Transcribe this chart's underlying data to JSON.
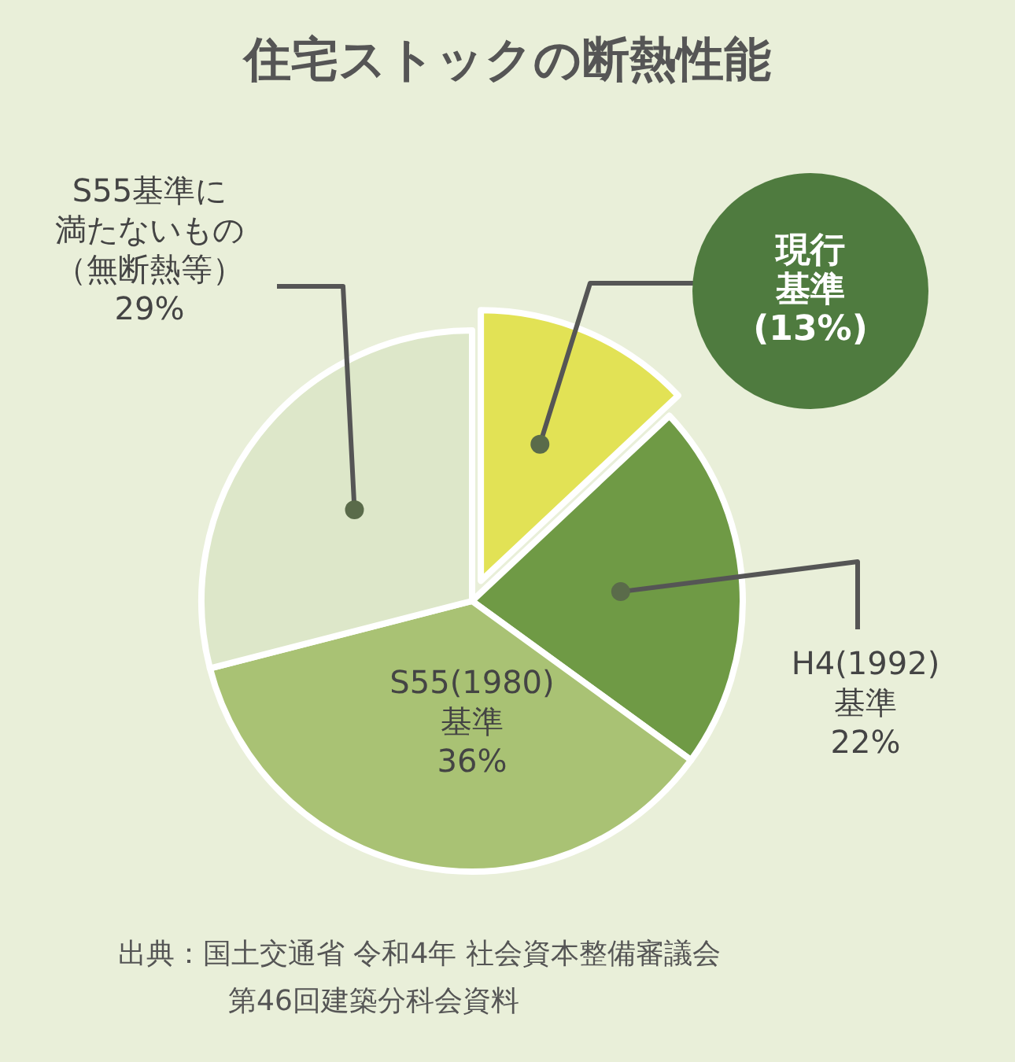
{
  "chart_data": {
    "type": "pie",
    "title": "住宅ストックの断熱性能",
    "categories": [
      "現行基準",
      "H4(1992)基準",
      "S55(1980)基準",
      "S55基準に満たないもの（無断熱等）"
    ],
    "values": [
      13,
      22,
      36,
      29
    ],
    "colors": [
      "#e2e255",
      "#6f9a45",
      "#a9c274",
      "#dde7c9"
    ],
    "value_labels": [
      "(13%)",
      "22%",
      "36%",
      "29%"
    ],
    "annotations": [
      "出典：国土交通省 令和4年 社会資本整備審議会",
      "第46回建築分科会資料"
    ]
  }
}
